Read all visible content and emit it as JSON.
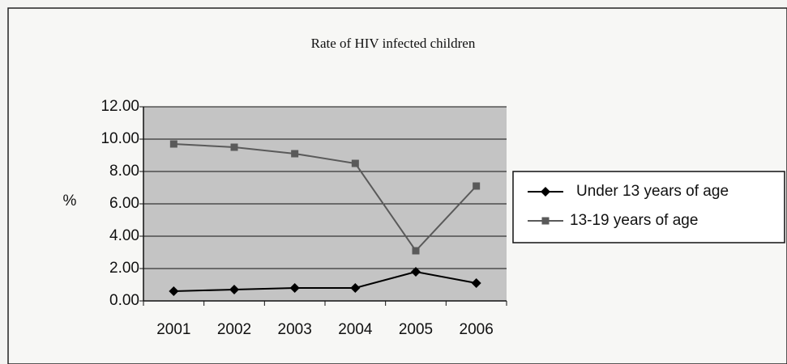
{
  "chart_data": {
    "type": "line",
    "title": "Rate of HIV infected children",
    "y_label": "%",
    "categories": [
      "2001",
      "2002",
      "2003",
      "2004",
      "2005",
      "2006"
    ],
    "series": [
      {
        "name": "Under 13 years of age",
        "color": "#000000",
        "marker": "diamond",
        "values": [
          0.6,
          0.7,
          0.8,
          0.8,
          1.8,
          1.1
        ]
      },
      {
        "name": "13-19 years of age",
        "color": "#5a5a5a",
        "marker": "square",
        "values": [
          9.7,
          9.5,
          9.1,
          8.5,
          3.1,
          7.1
        ]
      }
    ],
    "ylim": [
      0,
      12
    ],
    "yticks": [
      {
        "value": 0,
        "label": "0.00"
      },
      {
        "value": 2,
        "label": "2.00"
      },
      {
        "value": 4,
        "label": "4.00"
      },
      {
        "value": 6,
        "label": "6.00"
      },
      {
        "value": 8,
        "label": "8.00"
      },
      {
        "value": 10,
        "label": "10.00"
      },
      {
        "value": 12,
        "label": "12.00"
      }
    ],
    "grid": true,
    "legend": "right"
  }
}
